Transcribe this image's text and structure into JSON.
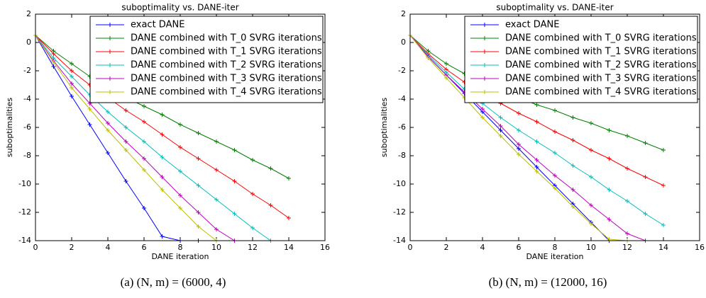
{
  "chart_data": [
    {
      "type": "line",
      "title": "suboptimality vs. DANE-iter",
      "xlabel": "DANE iteration",
      "ylabel": "suboptimalities",
      "caption": "(a) (N, m) = (6000, 4)",
      "x": [
        0,
        1,
        2,
        3,
        4,
        5,
        6,
        7,
        8,
        9,
        10,
        11,
        12,
        13,
        14
      ],
      "xlim": [
        0,
        16
      ],
      "xticks": [
        0,
        2,
        4,
        6,
        8,
        10,
        12,
        14,
        16
      ],
      "ylim": [
        -14,
        2
      ],
      "yticks": [
        2,
        0,
        -2,
        -4,
        -6,
        -8,
        -10,
        -12,
        -14
      ],
      "legend": "upper right",
      "series": [
        {
          "name": "exact DANE",
          "color": "#0000ff",
          "values": [
            0.5,
            -1.7,
            -3.8,
            -5.8,
            -7.8,
            -9.8,
            -11.7,
            -13.7,
            -14,
            -14,
            -14,
            null,
            null,
            null,
            null
          ]
        },
        {
          "name": "DANE combined with T_0 SVRG iterations",
          "color": "#008000",
          "values": [
            0.5,
            -0.6,
            -1.5,
            -2.4,
            -3.2,
            -3.9,
            -4.5,
            -5.1,
            -5.8,
            -6.4,
            -7.0,
            -7.6,
            -8.3,
            -8.9,
            -9.6
          ]
        },
        {
          "name": "DANE combined with T_1 SVRG iterations",
          "color": "#ff0000",
          "values": [
            0.5,
            -0.8,
            -2.0,
            -3.0,
            -3.9,
            -4.8,
            -5.6,
            -6.5,
            -7.4,
            -8.2,
            -9.0,
            -9.8,
            -10.7,
            -11.5,
            -12.4
          ]
        },
        {
          "name": "DANE combined with T_2 SVRG iterations",
          "color": "#00bfbf",
          "values": [
            0.5,
            -1.1,
            -2.4,
            -3.7,
            -4.9,
            -6.0,
            -7.0,
            -8.1,
            -9.1,
            -10.1,
            -11.1,
            -12.1,
            -13.1,
            -14.0,
            null
          ]
        },
        {
          "name": "DANE combined with T_3 SVRG iterations",
          "color": "#bf00bf",
          "values": [
            0.5,
            -1.3,
            -2.9,
            -4.3,
            -5.7,
            -7.0,
            -8.2,
            -9.5,
            -10.8,
            -12.0,
            -13.2,
            -14.0,
            null,
            null,
            null
          ]
        },
        {
          "name": "DANE combined with T_4 SVRG iterations",
          "color": "#bfbf00",
          "values": [
            0.5,
            -1.4,
            -3.2,
            -4.7,
            -6.2,
            -7.6,
            -9.0,
            -10.4,
            -11.7,
            -13.0,
            -14.0,
            null,
            null,
            null,
            null
          ]
        }
      ]
    },
    {
      "type": "line",
      "title": "suboptimality vs. DANE-iter",
      "xlabel": "DANE iteration",
      "ylabel": "suboptimalities",
      "caption": "(b) (N, m) = (12000, 16)",
      "x": [
        0,
        1,
        2,
        3,
        4,
        5,
        6,
        7,
        8,
        9,
        10,
        11,
        12,
        13,
        14
      ],
      "xlim": [
        0,
        16
      ],
      "xticks": [
        0,
        2,
        4,
        6,
        8,
        10,
        12,
        14,
        16
      ],
      "ylim": [
        -14,
        2
      ],
      "yticks": [
        2,
        0,
        -2,
        -4,
        -6,
        -8,
        -10,
        -12,
        -14
      ],
      "legend": "upper right",
      "series": [
        {
          "name": "exact DANE",
          "color": "#0000ff",
          "values": [
            0.5,
            -1.0,
            -2.3,
            -3.6,
            -4.9,
            -6.2,
            -7.5,
            -8.8,
            -10.1,
            -11.4,
            -12.7,
            -14.0,
            null,
            null,
            null
          ]
        },
        {
          "name": "DANE combined with T_0 SVRG iterations",
          "color": "#008000",
          "values": [
            0.5,
            -0.6,
            -1.5,
            -2.2,
            -2.9,
            -3.4,
            -3.9,
            -4.4,
            -4.8,
            -5.3,
            -5.7,
            -6.2,
            -6.6,
            -7.1,
            -7.6
          ]
        },
        {
          "name": "DANE combined with T_1 SVRG iterations",
          "color": "#ff0000",
          "values": [
            0.5,
            -0.8,
            -1.9,
            -2.8,
            -3.6,
            -4.3,
            -5.0,
            -5.6,
            -6.3,
            -6.9,
            -7.6,
            -8.2,
            -8.9,
            -9.5,
            -10.1
          ]
        },
        {
          "name": "DANE combined with T_2 SVRG iterations",
          "color": "#00bfbf",
          "values": [
            0.5,
            -0.9,
            -2.1,
            -3.3,
            -4.3,
            -5.3,
            -6.2,
            -7.0,
            -7.8,
            -8.7,
            -9.5,
            -10.4,
            -11.2,
            -12.1,
            -12.9
          ]
        },
        {
          "name": "DANE combined with T_3 SVRG iterations",
          "color": "#bf00bf",
          "values": [
            0.5,
            -1.0,
            -2.3,
            -3.5,
            -4.7,
            -5.9,
            -7.2,
            -8.3,
            -9.4,
            -10.4,
            -11.5,
            -12.5,
            -13.5,
            -14.0,
            null
          ]
        },
        {
          "name": "DANE combined with T_4 SVRG iterations",
          "color": "#bfbf00",
          "values": [
            0.5,
            -1.1,
            -2.5,
            -3.9,
            -5.3,
            -6.6,
            -7.9,
            -9.1,
            -10.3,
            -11.6,
            -12.8,
            -13.9,
            -14.0,
            null,
            null
          ]
        }
      ]
    }
  ]
}
